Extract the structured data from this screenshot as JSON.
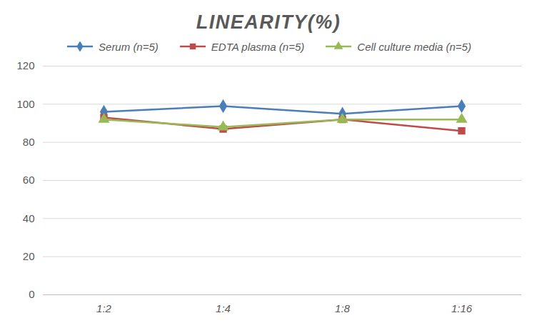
{
  "chart_data": {
    "type": "line",
    "title": "LINEARITY(%)",
    "categories": [
      "1:2",
      "1:4",
      "1:8",
      "1:16"
    ],
    "series": [
      {
        "name": "Serum (n=5)",
        "color": "#4a7ebb",
        "marker": "diamond",
        "values": [
          96,
          99,
          95,
          99
        ]
      },
      {
        "name": "EDTA plasma (n=5)",
        "color": "#be4b48",
        "marker": "square",
        "values": [
          93,
          87,
          92,
          86
        ]
      },
      {
        "name": "Cell culture media (n=5)",
        "color": "#98b954",
        "marker": "triangle",
        "values": [
          92,
          88,
          92,
          92
        ]
      }
    ],
    "ylim": [
      0,
      120
    ],
    "yticks": [
      0,
      20,
      40,
      60,
      80,
      100,
      120
    ],
    "grid": true,
    "legend": "top"
  }
}
